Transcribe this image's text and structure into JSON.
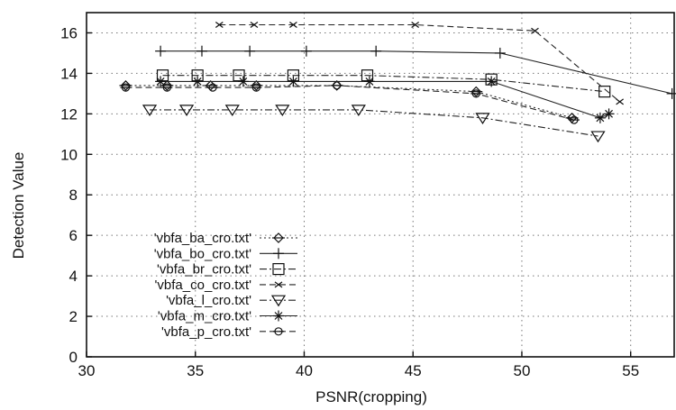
{
  "chart_data": {
    "type": "line",
    "title": "",
    "xlabel": "PSNR(cropping)",
    "ylabel": "Detection Value",
    "xlim": [
      30,
      57
    ],
    "ylim": [
      0,
      17
    ],
    "x_ticks": [
      30,
      35,
      40,
      45,
      50,
      55
    ],
    "y_ticks": [
      0,
      2,
      4,
      6,
      8,
      10,
      12,
      14,
      16
    ],
    "grid": true,
    "legend_position": "bottom-left",
    "series": [
      {
        "name": "'vbfa_ba_cro.txt'",
        "marker": "diamond",
        "dash": "dotted",
        "x": [
          31.8,
          33.7,
          35.7,
          37.8,
          41.5,
          47.9,
          52.3
        ],
        "y": [
          13.4,
          13.4,
          13.4,
          13.4,
          13.4,
          13.1,
          11.8
        ]
      },
      {
        "name": "'vbfa_bo_cro.txt'",
        "marker": "plus",
        "dash": "solid",
        "x": [
          33.4,
          35.3,
          37.5,
          40.1,
          43.3,
          49.0,
          56.9
        ],
        "y": [
          15.1,
          15.1,
          15.1,
          15.1,
          15.1,
          15.0,
          13.0
        ]
      },
      {
        "name": "'vbfa_br_cro.txt'",
        "marker": "square",
        "dash": "dashdot",
        "x": [
          33.5,
          35.1,
          37.0,
          39.5,
          42.9,
          48.6,
          53.8
        ],
        "y": [
          13.9,
          13.9,
          13.9,
          13.9,
          13.9,
          13.7,
          13.1
        ]
      },
      {
        "name": "'vbfa_co_cro.txt'",
        "marker": "x",
        "dash": "dashed",
        "x": [
          36.1,
          37.7,
          39.5,
          45.1,
          50.6,
          54.5
        ],
        "y": [
          16.4,
          16.4,
          16.4,
          16.4,
          16.1,
          12.6
        ]
      },
      {
        "name": "'vbfa_l_cro.txt'",
        "marker": "triangle-down",
        "dash": "dashdot",
        "x": [
          32.9,
          34.6,
          36.7,
          39.0,
          42.5,
          48.2,
          53.5
        ],
        "y": [
          12.2,
          12.2,
          12.2,
          12.2,
          12.2,
          11.8,
          10.9
        ]
      },
      {
        "name": "'vbfa_m_cro.txt'",
        "marker": "star",
        "dash": "solid",
        "x": [
          33.4,
          35.1,
          37.2,
          39.5,
          43.0,
          48.6,
          53.6,
          54.0
        ],
        "y": [
          13.6,
          13.6,
          13.6,
          13.6,
          13.6,
          13.6,
          11.8,
          12.0
        ]
      },
      {
        "name": "'vbfa_p_cro.txt'",
        "marker": "circle-plus",
        "dash": "dashed",
        "x": [
          31.8,
          33.7,
          35.8,
          37.8,
          41.5,
          47.9,
          52.4
        ],
        "y": [
          13.3,
          13.3,
          13.3,
          13.3,
          13.4,
          13.0,
          11.7
        ]
      }
    ]
  }
}
